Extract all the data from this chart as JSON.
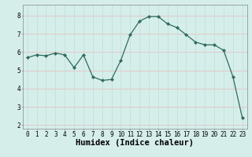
{
  "x": [
    0,
    1,
    2,
    3,
    4,
    5,
    6,
    7,
    8,
    9,
    10,
    11,
    12,
    13,
    14,
    15,
    16,
    17,
    18,
    19,
    20,
    21,
    22,
    23
  ],
  "y": [
    5.7,
    5.85,
    5.8,
    5.95,
    5.85,
    5.15,
    5.85,
    4.65,
    4.45,
    4.5,
    5.55,
    6.95,
    7.7,
    7.95,
    7.95,
    7.55,
    7.35,
    6.95,
    6.55,
    6.4,
    6.4,
    6.1,
    4.65,
    2.4
  ],
  "line_color": "#2e6b5e",
  "marker": "D",
  "marker_size": 2.2,
  "bg_color": "#d5eeea",
  "grid_color_h": "#e8b8b8",
  "grid_color_v": "#c0ddd8",
  "xlabel": "Humidex (Indice chaleur)",
  "xlim": [
    -0.5,
    23.5
  ],
  "ylim": [
    1.8,
    8.6
  ],
  "yticks": [
    2,
    3,
    4,
    5,
    6,
    7,
    8
  ],
  "xticks": [
    0,
    1,
    2,
    3,
    4,
    5,
    6,
    7,
    8,
    9,
    10,
    11,
    12,
    13,
    14,
    15,
    16,
    17,
    18,
    19,
    20,
    21,
    22,
    23
  ],
  "tick_label_fontsize": 5.5,
  "xlabel_fontsize": 7.5
}
